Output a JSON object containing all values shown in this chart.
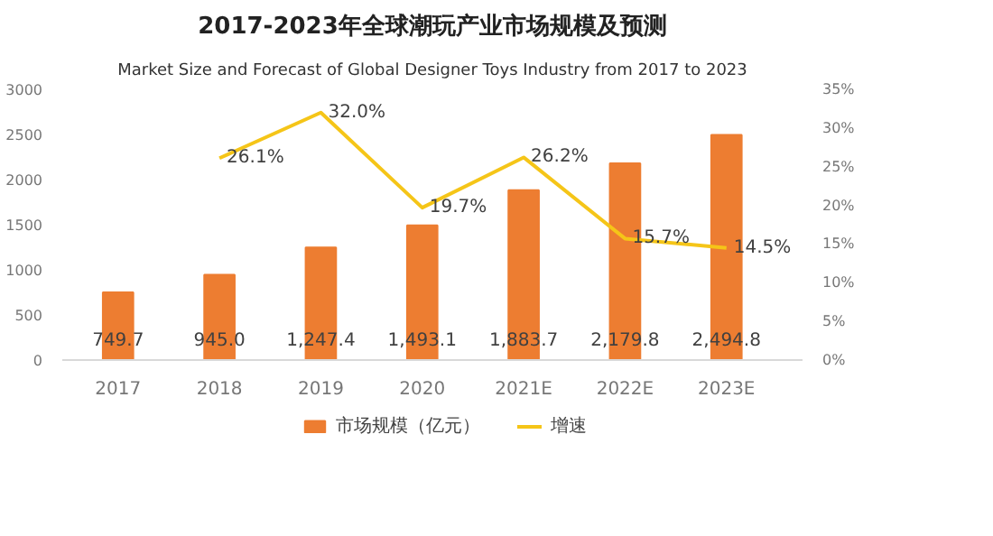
{
  "chart_data": {
    "type": "bar",
    "title": "2017-2023年全球潮玩产业市场规模及预测",
    "subtitle": "Market Size and Forecast of Global Designer Toys Industry from 2017 to 2023",
    "categories": [
      "2017",
      "2018",
      "2019",
      "2020",
      "2021E",
      "2022E",
      "2023E"
    ],
    "series": [
      {
        "name": "市场规模（亿元）",
        "color": "#ed7d31",
        "values": [
          749.7,
          945.0,
          1247.4,
          1493.1,
          1883.7,
          2179.8,
          2494.8
        ],
        "value_labels": [
          "749.7",
          "945.0",
          "1,247.4",
          "1,493.1",
          "1,883.7",
          "2,179.8",
          "2,494.8"
        ]
      },
      {
        "name": "增速",
        "type": "line",
        "axis": "y2",
        "color": "#f5c518",
        "values": [
          null,
          26.1,
          32.0,
          19.7,
          26.2,
          15.7,
          14.5
        ],
        "value_labels": [
          null,
          "26.1%",
          "32.0%",
          "19.7%",
          "26.2%",
          "15.7%",
          "14.5%"
        ]
      }
    ],
    "ylim": [
      0,
      3000
    ],
    "yticks": [
      0,
      500,
      1000,
      1500,
      2000,
      2500,
      3000
    ],
    "y2lim": [
      0,
      35
    ],
    "y2ticks": [
      {
        "value": 0,
        "label": "0%"
      },
      {
        "value": 5,
        "label": "5%"
      },
      {
        "value": 10,
        "label": "10%"
      },
      {
        "value": 15,
        "label": "15%"
      },
      {
        "value": 20,
        "label": "20%"
      },
      {
        "value": 25,
        "label": "25%"
      },
      {
        "value": 30,
        "label": "30%"
      },
      {
        "value": 35,
        "label": "35%"
      }
    ],
    "legend": "bottom",
    "grid": false
  }
}
